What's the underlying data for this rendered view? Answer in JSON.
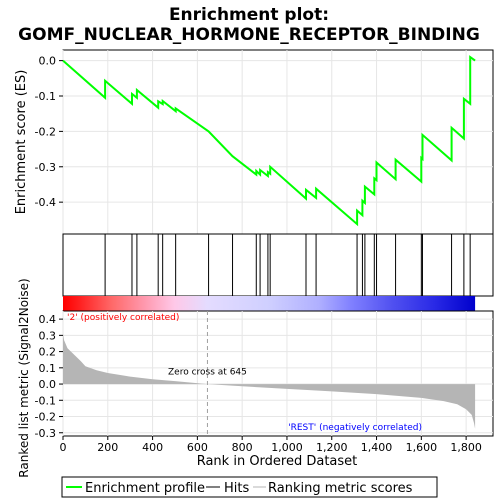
{
  "chart_data": {
    "type": "line",
    "title_line1": "Enrichment plot:",
    "title_line2": "GOMF_NUCLEAR_HORMONE_RECEPTOR_BINDING",
    "ylabel_top": "Enrichment score (ES)",
    "ylabel_bottom": "Ranked list metric (Signal2Noise)",
    "xlabel": "Rank in Ordered Dataset",
    "x_range": [
      0,
      1920
    ],
    "es_ylim": [
      -0.49,
      0.03
    ],
    "es_yticks": [
      0.0,
      -0.1,
      -0.2,
      -0.3,
      -0.4
    ],
    "es_ytick_labels": [
      "0.0",
      "-0.1",
      "-0.2",
      "-0.3",
      "-0.4"
    ],
    "metric_ylim": [
      -0.32,
      0.45
    ],
    "metric_yticks": [
      0.4,
      0.3,
      0.2,
      0.1,
      0.0,
      -0.1,
      -0.2,
      -0.3
    ],
    "metric_ytick_labels": [
      "0.4",
      "0.3",
      "0.2",
      "0.1",
      "0.0",
      "-0.1",
      "-0.2",
      "-0.3"
    ],
    "xticks": [
      0,
      200,
      400,
      600,
      800,
      1000,
      1200,
      1400,
      1600,
      1800
    ],
    "xtick_labels": [
      "0",
      "200",
      "400",
      "600",
      "800",
      "1,000",
      "1,200",
      "1,400",
      "1,600",
      "1,800"
    ],
    "hits": [
      188,
      308,
      330,
      425,
      445,
      503,
      650,
      757,
      863,
      880,
      915,
      925,
      1085,
      1130,
      1313,
      1337,
      1348,
      1390,
      1400,
      1485,
      1600,
      1605,
      1735,
      1790,
      1818
    ],
    "es_curve": [
      [
        0,
        0.0
      ],
      [
        188,
        -0.105
      ],
      [
        188,
        -0.057
      ],
      [
        308,
        -0.122
      ],
      [
        308,
        -0.094
      ],
      [
        330,
        -0.105
      ],
      [
        330,
        -0.083
      ],
      [
        425,
        -0.133
      ],
      [
        425,
        -0.115
      ],
      [
        445,
        -0.123
      ],
      [
        445,
        -0.114
      ],
      [
        503,
        -0.143
      ],
      [
        503,
        -0.135
      ],
      [
        650,
        -0.2
      ],
      [
        757,
        -0.27
      ],
      [
        863,
        -0.322
      ],
      [
        863,
        -0.312
      ],
      [
        880,
        -0.322
      ],
      [
        880,
        -0.309
      ],
      [
        915,
        -0.326
      ],
      [
        915,
        -0.315
      ],
      [
        925,
        -0.32
      ],
      [
        925,
        -0.3
      ],
      [
        1085,
        -0.39
      ],
      [
        1085,
        -0.365
      ],
      [
        1130,
        -0.388
      ],
      [
        1130,
        -0.362
      ],
      [
        1313,
        -0.462
      ],
      [
        1313,
        -0.424
      ],
      [
        1337,
        -0.437
      ],
      [
        1337,
        -0.396
      ],
      [
        1348,
        -0.402
      ],
      [
        1348,
        -0.356
      ],
      [
        1390,
        -0.378
      ],
      [
        1390,
        -0.333
      ],
      [
        1400,
        -0.338
      ],
      [
        1400,
        -0.288
      ],
      [
        1485,
        -0.335
      ],
      [
        1485,
        -0.28
      ],
      [
        1600,
        -0.342
      ],
      [
        1600,
        -0.275
      ],
      [
        1605,
        -0.278
      ],
      [
        1605,
        -0.21
      ],
      [
        1735,
        -0.282
      ],
      [
        1735,
        -0.19
      ],
      [
        1790,
        -0.22
      ],
      [
        1790,
        -0.108
      ],
      [
        1818,
        -0.122
      ],
      [
        1818,
        0.01
      ],
      [
        1840,
        0.0
      ]
    ],
    "zero_cross_rank": 645,
    "zero_cross_label": "Zero cross at 645",
    "pos_label": "'2' (positively correlated)",
    "neg_label": "'REST' (negatively correlated)",
    "n_ranks": 1840,
    "metric_profile": [
      [
        0,
        0.31
      ],
      [
        5,
        0.27
      ],
      [
        20,
        0.22
      ],
      [
        50,
        0.18
      ],
      [
        80,
        0.14
      ],
      [
        100,
        0.11
      ],
      [
        150,
        0.085
      ],
      [
        200,
        0.068
      ],
      [
        300,
        0.046
      ],
      [
        400,
        0.03
      ],
      [
        500,
        0.018
      ],
      [
        645,
        0.0
      ],
      [
        800,
        -0.014
      ],
      [
        1000,
        -0.03
      ],
      [
        1200,
        -0.045
      ],
      [
        1400,
        -0.062
      ],
      [
        1600,
        -0.085
      ],
      [
        1700,
        -0.105
      ],
      [
        1760,
        -0.125
      ],
      [
        1800,
        -0.155
      ],
      [
        1825,
        -0.19
      ],
      [
        1835,
        -0.24
      ],
      [
        1840,
        -0.275
      ]
    ],
    "colors": {
      "es_line": "#00ff00",
      "hit_line": "#000000",
      "metric_fill": "#b5b5b5",
      "zero_cross": "#a0a0a0",
      "pos_text": "#ff0000",
      "neg_text": "#0000ff",
      "bar_red": "#ff0000",
      "bar_blue": "#0000ff"
    },
    "legend": {
      "items": [
        "Enrichment profile",
        "Hits",
        "Ranking metric scores"
      ]
    }
  }
}
